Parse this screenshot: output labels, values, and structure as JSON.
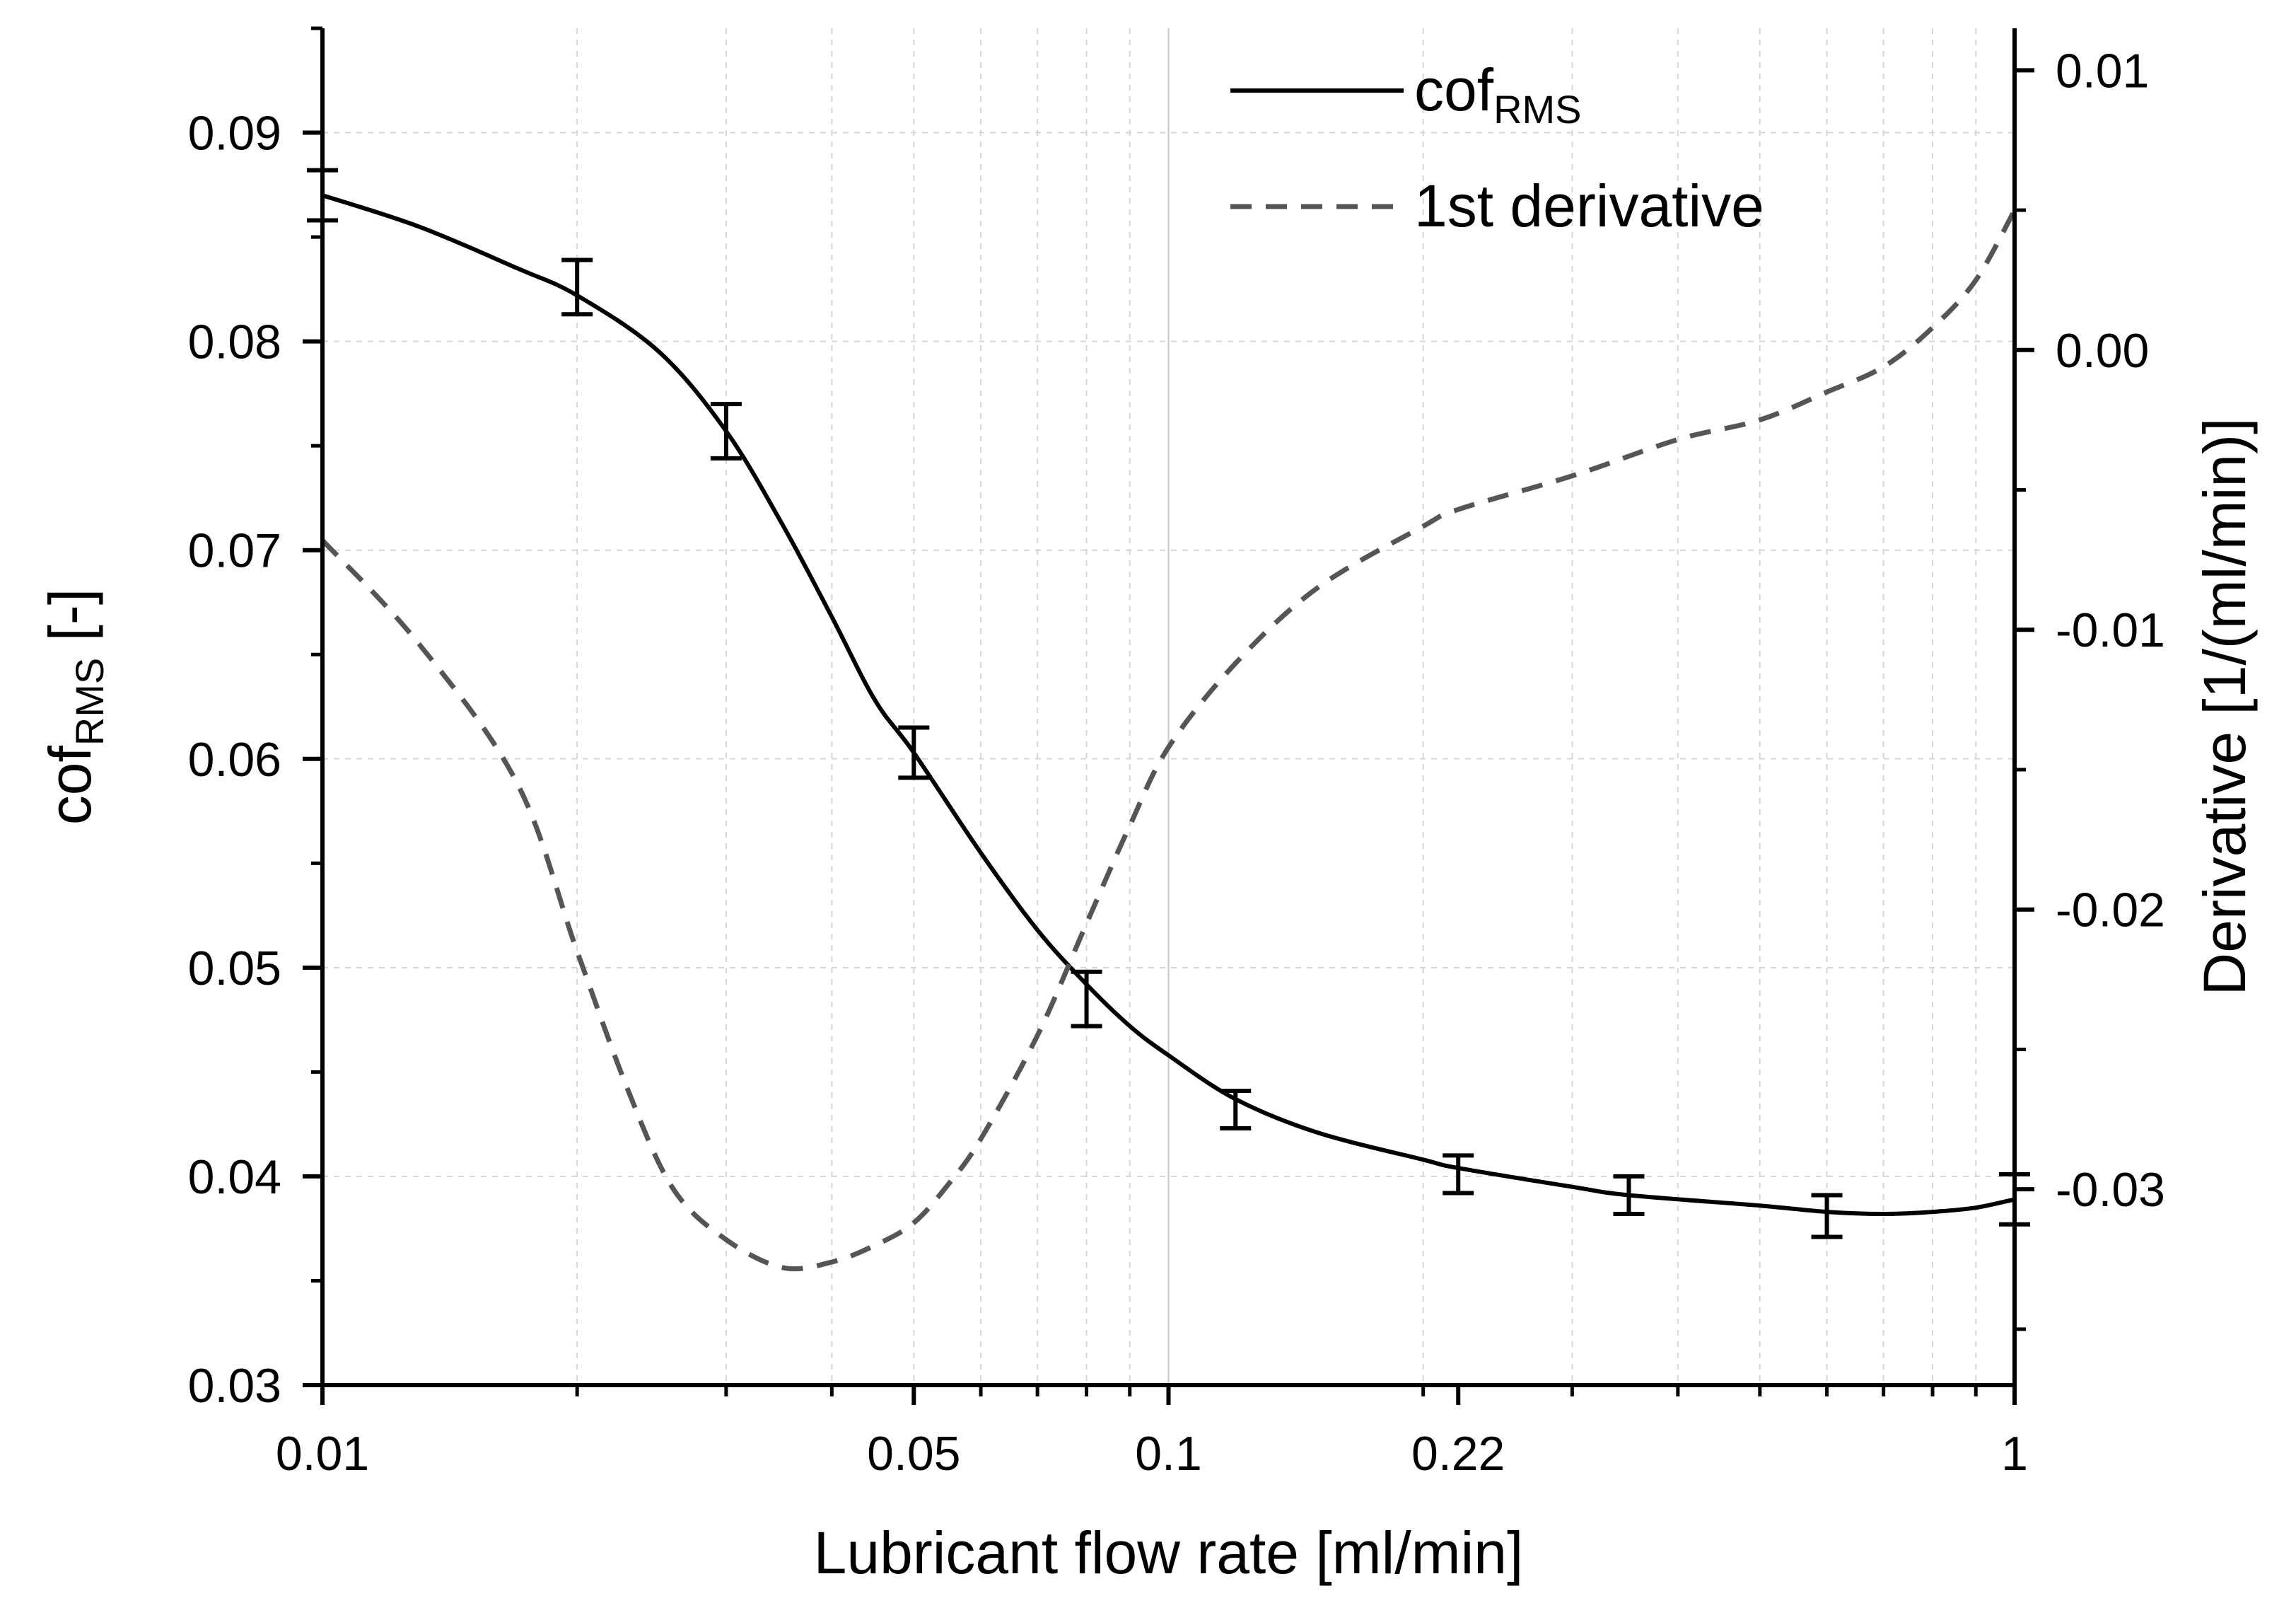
{
  "chart_data": {
    "type": "line",
    "x_scale": "log",
    "xlabel": "Lubricant flow rate [ml/min]",
    "ylabel_main": "cof",
    "ylabel_sub": "RMS",
    "ylabel_suffix": " [-]",
    "y2label": "Derivative [1/(ml/min)]",
    "xlim": [
      0.01,
      1
    ],
    "ylim": [
      0.03,
      0.095
    ],
    "y2lim": [
      -0.037,
      0.0115
    ],
    "x_ticks": [
      0.01,
      0.05,
      0.1,
      0.22,
      1
    ],
    "x_tick_labels": [
      "0.01",
      "0.05",
      "0.1",
      "0.22",
      "1"
    ],
    "y_ticks": [
      0.03,
      0.04,
      0.05,
      0.06,
      0.07,
      0.08,
      0.09
    ],
    "y_tick_labels": [
      "0.03",
      "0.04",
      "0.05",
      "0.06",
      "0.07",
      "0.08",
      "0.09"
    ],
    "y2_ticks": [
      -0.03,
      -0.02,
      -0.01,
      0.0,
      0.01
    ],
    "y2_tick_labels": [
      "-0.03",
      "-0.02",
      "-0.01",
      "0.00",
      "0.01"
    ],
    "grid": true,
    "legend_position": "top-right",
    "series": [
      {
        "name_main": "cof",
        "name_sub": "RMS",
        "axis": "left",
        "style": "solid",
        "color": "#000000",
        "x": [
          0.01,
          0.013,
          0.017,
          0.02,
          0.025,
          0.03,
          0.035,
          0.04,
          0.045,
          0.05,
          0.06,
          0.07,
          0.08,
          0.09,
          0.1,
          0.12,
          0.15,
          0.2,
          0.22,
          0.3,
          0.35,
          0.5,
          0.6,
          0.7,
          0.8,
          0.9,
          1.0
        ],
        "y": [
          0.087,
          0.0855,
          0.0835,
          0.0822,
          0.0795,
          0.0757,
          0.0712,
          0.0668,
          0.0628,
          0.0603,
          0.0555,
          0.0518,
          0.0492,
          0.0472,
          0.0458,
          0.0437,
          0.0421,
          0.0408,
          0.0404,
          0.0395,
          0.0391,
          0.0386,
          0.0383,
          0.0382,
          0.0383,
          0.0385,
          0.0389
        ]
      },
      {
        "name": "1st derivative",
        "axis": "right",
        "style": "dashed",
        "color": "#555555",
        "x": [
          0.01,
          0.013,
          0.017,
          0.02,
          0.023,
          0.026,
          0.03,
          0.035,
          0.04,
          0.045,
          0.05,
          0.055,
          0.06,
          0.07,
          0.08,
          0.09,
          0.1,
          0.12,
          0.15,
          0.2,
          0.22,
          0.3,
          0.4,
          0.5,
          0.6,
          0.7,
          0.8,
          0.9,
          1.0
        ],
        "y": [
          -0.0068,
          -0.0105,
          -0.0155,
          -0.0215,
          -0.0265,
          -0.03,
          -0.0318,
          -0.0328,
          -0.0326,
          -0.032,
          -0.0312,
          -0.0298,
          -0.0282,
          -0.0245,
          -0.0205,
          -0.017,
          -0.0142,
          -0.0112,
          -0.0085,
          -0.0063,
          -0.0057,
          -0.0045,
          -0.0032,
          -0.0025,
          -0.0015,
          -0.0006,
          0.0008,
          0.0025,
          0.005
        ]
      }
    ],
    "error_bars": {
      "x": [
        0.01,
        0.02,
        0.03,
        0.05,
        0.08,
        0.12,
        0.22,
        0.35,
        0.6,
        1.0
      ],
      "y": [
        0.087,
        0.0826,
        0.0757,
        0.0603,
        0.0485,
        0.0432,
        0.0401,
        0.0391,
        0.0381,
        0.0389
      ],
      "err": [
        0.0012,
        0.0013,
        0.0013,
        0.0012,
        0.0013,
        0.0009,
        0.0009,
        0.0009,
        0.001,
        0.0012
      ]
    },
    "legend": [
      {
        "label_main": "cof",
        "label_sub": "RMS",
        "style": "solid"
      },
      {
        "label_main": "1st derivative",
        "label_sub": "",
        "style": "dashed"
      }
    ]
  }
}
